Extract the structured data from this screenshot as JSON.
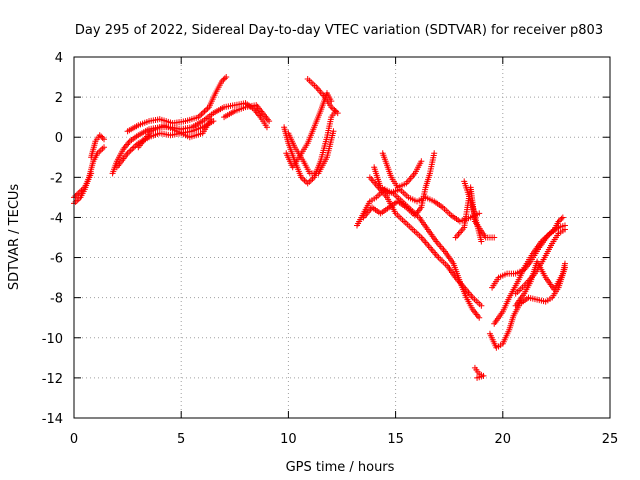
{
  "chart_data": {
    "type": "scatter",
    "title": "Day 295 of 2022, Sidereal Day-to-day VTEC variation (SDTVAR) for receiver p803",
    "xlabel": "GPS time / hours",
    "ylabel": "SDTVAR / TECUs",
    "xlim": [
      0,
      25
    ],
    "ylim": [
      -14,
      4
    ],
    "xticks": [
      0,
      5,
      10,
      15,
      20,
      25
    ],
    "yticks": [
      4,
      2,
      0,
      -2,
      -4,
      -6,
      -8,
      -10,
      -12,
      -14
    ],
    "xtick_labels": [
      "0",
      "5",
      "10",
      "15",
      "20",
      "25"
    ],
    "ytick_labels": [
      "4",
      "2",
      "0",
      "-2",
      "-4",
      "-6",
      "-8",
      "-10",
      "-12",
      "-14"
    ],
    "grid": true,
    "grid_style": "dotted",
    "marker": "+",
    "color": "#ff0000",
    "series": [
      {
        "tracks": [
          [
            [
              0.0,
              -3.3
            ],
            [
              0.3,
              -3.0
            ],
            [
              0.5,
              -2.6
            ],
            [
              0.7,
              -2.0
            ],
            [
              0.9,
              -1.2
            ],
            [
              1.1,
              -0.8
            ],
            [
              1.4,
              -0.5
            ]
          ],
          [
            [
              0.0,
              -3.0
            ],
            [
              0.2,
              -2.8
            ],
            [
              0.5,
              -2.5
            ],
            [
              0.8,
              -1.8
            ]
          ],
          [
            [
              0.8,
              -1.0
            ],
            [
              1.0,
              -0.2
            ],
            [
              1.2,
              0.1
            ],
            [
              1.4,
              -0.1
            ]
          ],
          [
            [
              1.8,
              -1.8
            ],
            [
              2.0,
              -1.2
            ],
            [
              2.3,
              -0.6
            ],
            [
              2.6,
              -0.2
            ],
            [
              3.0,
              0.1
            ],
            [
              3.5,
              0.4
            ],
            [
              4.0,
              0.5
            ],
            [
              4.5,
              0.5
            ],
            [
              5.0,
              0.4
            ],
            [
              5.5,
              0.5
            ],
            [
              6.0,
              0.8
            ],
            [
              6.5,
              1.2
            ],
            [
              7.0,
              1.5
            ],
            [
              7.5,
              1.6
            ],
            [
              8.0,
              1.7
            ],
            [
              8.4,
              1.4
            ],
            [
              8.7,
              1.0
            ],
            [
              9.0,
              0.5
            ]
          ],
          [
            [
              2.0,
              -1.5
            ],
            [
              2.5,
              -0.8
            ],
            [
              3.0,
              -0.3
            ],
            [
              3.5,
              0.0
            ],
            [
              4.0,
              0.2
            ],
            [
              4.5,
              0.1
            ],
            [
              5.0,
              0.2
            ],
            [
              5.5,
              0.3
            ],
            [
              6.0,
              0.5
            ],
            [
              6.5,
              0.8
            ]
          ],
          [
            [
              2.5,
              0.3
            ],
            [
              3.0,
              0.6
            ],
            [
              3.5,
              0.8
            ],
            [
              4.0,
              0.9
            ],
            [
              4.6,
              0.7
            ],
            [
              5.2,
              0.8
            ],
            [
              5.8,
              1.0
            ],
            [
              6.3,
              1.5
            ],
            [
              6.6,
              2.2
            ],
            [
              6.9,
              2.8
            ],
            [
              7.1,
              3.0
            ]
          ],
          [
            [
              3.0,
              -0.5
            ],
            [
              3.6,
              0.3
            ],
            [
              4.2,
              0.6
            ],
            [
              4.8,
              0.3
            ],
            [
              5.4,
              0.0
            ],
            [
              6.0,
              0.2
            ],
            [
              6.4,
              0.9
            ]
          ],
          [
            [
              7.0,
              1.0
            ],
            [
              7.5,
              1.3
            ],
            [
              8.0,
              1.5
            ],
            [
              8.5,
              1.6
            ],
            [
              8.8,
              1.2
            ],
            [
              9.1,
              0.8
            ]
          ],
          [
            [
              9.8,
              0.5
            ],
            [
              10.0,
              -0.3
            ],
            [
              10.3,
              -1.2
            ],
            [
              10.6,
              -2.0
            ],
            [
              10.9,
              -2.3
            ],
            [
              11.2,
              -2.0
            ],
            [
              11.5,
              -1.2
            ],
            [
              11.8,
              0.0
            ],
            [
              12.0,
              1.0
            ],
            [
              12.2,
              1.3
            ]
          ],
          [
            [
              9.9,
              -0.8
            ],
            [
              10.2,
              -1.5
            ],
            [
              10.5,
              -1.0
            ],
            [
              10.9,
              -0.3
            ],
            [
              11.2,
              0.5
            ],
            [
              11.5,
              1.3
            ],
            [
              11.8,
              2.2
            ],
            [
              12.0,
              1.8
            ]
          ],
          [
            [
              10.0,
              0.2
            ],
            [
              10.3,
              -0.5
            ],
            [
              10.7,
              -1.2
            ],
            [
              11.0,
              -1.8
            ],
            [
              11.4,
              -1.8
            ],
            [
              11.8,
              -1.0
            ],
            [
              12.1,
              0.3
            ]
          ],
          [
            [
              10.9,
              2.9
            ],
            [
              11.3,
              2.5
            ],
            [
              11.7,
              2.0
            ],
            [
              12.0,
              1.5
            ],
            [
              12.3,
              1.2
            ]
          ],
          [
            [
              13.2,
              -4.4
            ],
            [
              13.5,
              -3.8
            ],
            [
              13.8,
              -3.2
            ],
            [
              14.1,
              -3.0
            ],
            [
              14.5,
              -2.6
            ],
            [
              14.9,
              -2.8
            ],
            [
              15.3,
              -3.2
            ],
            [
              15.7,
              -3.6
            ],
            [
              16.1,
              -4.0
            ],
            [
              16.5,
              -4.6
            ],
            [
              16.9,
              -5.2
            ],
            [
              17.3,
              -5.7
            ],
            [
              17.7,
              -6.3
            ],
            [
              18.0,
              -7.2
            ],
            [
              18.3,
              -8.0
            ],
            [
              18.6,
              -8.6
            ],
            [
              18.9,
              -9.0
            ]
          ],
          [
            [
              13.5,
              -4.0
            ],
            [
              13.9,
              -3.5
            ],
            [
              14.3,
              -3.8
            ],
            [
              14.7,
              -3.5
            ],
            [
              15.1,
              -3.2
            ],
            [
              15.5,
              -3.5
            ],
            [
              15.9,
              -3.9
            ],
            [
              16.2,
              -3.5
            ],
            [
              16.4,
              -2.5
            ],
            [
              16.6,
              -1.8
            ],
            [
              16.8,
              -0.8
            ]
          ],
          [
            [
              13.8,
              -2.0
            ],
            [
              14.2,
              -2.5
            ],
            [
              14.6,
              -3.0
            ],
            [
              15.0,
              -3.8
            ],
            [
              15.4,
              -4.2
            ],
            [
              15.8,
              -4.6
            ],
            [
              16.2,
              -5.0
            ],
            [
              16.6,
              -5.5
            ],
            [
              17.0,
              -6.0
            ],
            [
              17.4,
              -6.4
            ],
            [
              17.8,
              -7.0
            ],
            [
              18.2,
              -7.5
            ],
            [
              18.6,
              -8.0
            ],
            [
              19.0,
              -8.4
            ]
          ],
          [
            [
              14.0,
              -1.5
            ],
            [
              14.3,
              -2.5
            ],
            [
              14.7,
              -2.8
            ],
            [
              15.2,
              -2.6
            ],
            [
              15.6,
              -3.0
            ],
            [
              16.0,
              -3.2
            ],
            [
              16.4,
              -3.0
            ],
            [
              16.8,
              -3.2
            ],
            [
              17.2,
              -3.5
            ],
            [
              17.6,
              -3.9
            ],
            [
              18.0,
              -4.2
            ],
            [
              18.5,
              -4.0
            ],
            [
              18.9,
              -3.8
            ]
          ],
          [
            [
              14.4,
              -0.8
            ],
            [
              14.8,
              -2.0
            ],
            [
              15.1,
              -2.5
            ],
            [
              15.5,
              -2.3
            ],
            [
              15.9,
              -1.8
            ],
            [
              16.2,
              -1.2
            ]
          ],
          [
            [
              17.8,
              -5.0
            ],
            [
              18.2,
              -4.5
            ],
            [
              18.5,
              -2.5
            ],
            [
              18.7,
              -4.2
            ],
            [
              19.2,
              -5.0
            ],
            [
              19.6,
              -5.0
            ]
          ],
          [
            [
              18.2,
              -2.2
            ],
            [
              18.6,
              -3.5
            ],
            [
              19.0,
              -5.2
            ]
          ],
          [
            [
              18.7,
              -11.5
            ],
            [
              18.9,
              -11.8
            ],
            [
              19.1,
              -11.9
            ],
            [
              18.8,
              -12.0
            ]
          ],
          [
            [
              19.4,
              -9.8
            ],
            [
              19.7,
              -10.5
            ],
            [
              20.0,
              -10.3
            ],
            [
              20.3,
              -9.6
            ],
            [
              20.5,
              -8.9
            ],
            [
              20.8,
              -8.3
            ],
            [
              21.2,
              -8.0
            ],
            [
              21.6,
              -8.1
            ],
            [
              22.0,
              -8.2
            ],
            [
              22.3,
              -8.0
            ],
            [
              22.6,
              -7.5
            ],
            [
              22.9,
              -6.5
            ]
          ],
          [
            [
              19.6,
              -9.3
            ],
            [
              20.0,
              -8.7
            ],
            [
              20.3,
              -8.0
            ],
            [
              20.7,
              -7.2
            ],
            [
              21.0,
              -6.5
            ],
            [
              21.4,
              -5.8
            ],
            [
              21.8,
              -5.2
            ],
            [
              22.2,
              -4.8
            ],
            [
              22.6,
              -4.5
            ],
            [
              22.9,
              -4.4
            ]
          ],
          [
            [
              19.5,
              -7.5
            ],
            [
              19.8,
              -7.0
            ],
            [
              20.2,
              -6.8
            ],
            [
              20.6,
              -6.8
            ],
            [
              21.0,
              -6.6
            ],
            [
              21.3,
              -6.2
            ],
            [
              21.7,
              -5.5
            ],
            [
              22.1,
              -4.9
            ],
            [
              22.4,
              -4.6
            ],
            [
              22.6,
              -4.2
            ],
            [
              22.8,
              -4.0
            ]
          ],
          [
            [
              20.6,
              -7.8
            ],
            [
              21.0,
              -7.4
            ],
            [
              21.5,
              -6.8
            ],
            [
              21.9,
              -6.1
            ],
            [
              22.3,
              -5.3
            ],
            [
              22.6,
              -4.8
            ],
            [
              22.9,
              -4.6
            ]
          ],
          [
            [
              20.6,
              -8.4
            ],
            [
              21.0,
              -7.8
            ],
            [
              21.3,
              -7.2
            ],
            [
              21.6,
              -6.2
            ],
            [
              22.0,
              -7.0
            ],
            [
              22.4,
              -7.6
            ],
            [
              22.8,
              -6.8
            ],
            [
              22.9,
              -6.3
            ]
          ]
        ]
      }
    ]
  }
}
